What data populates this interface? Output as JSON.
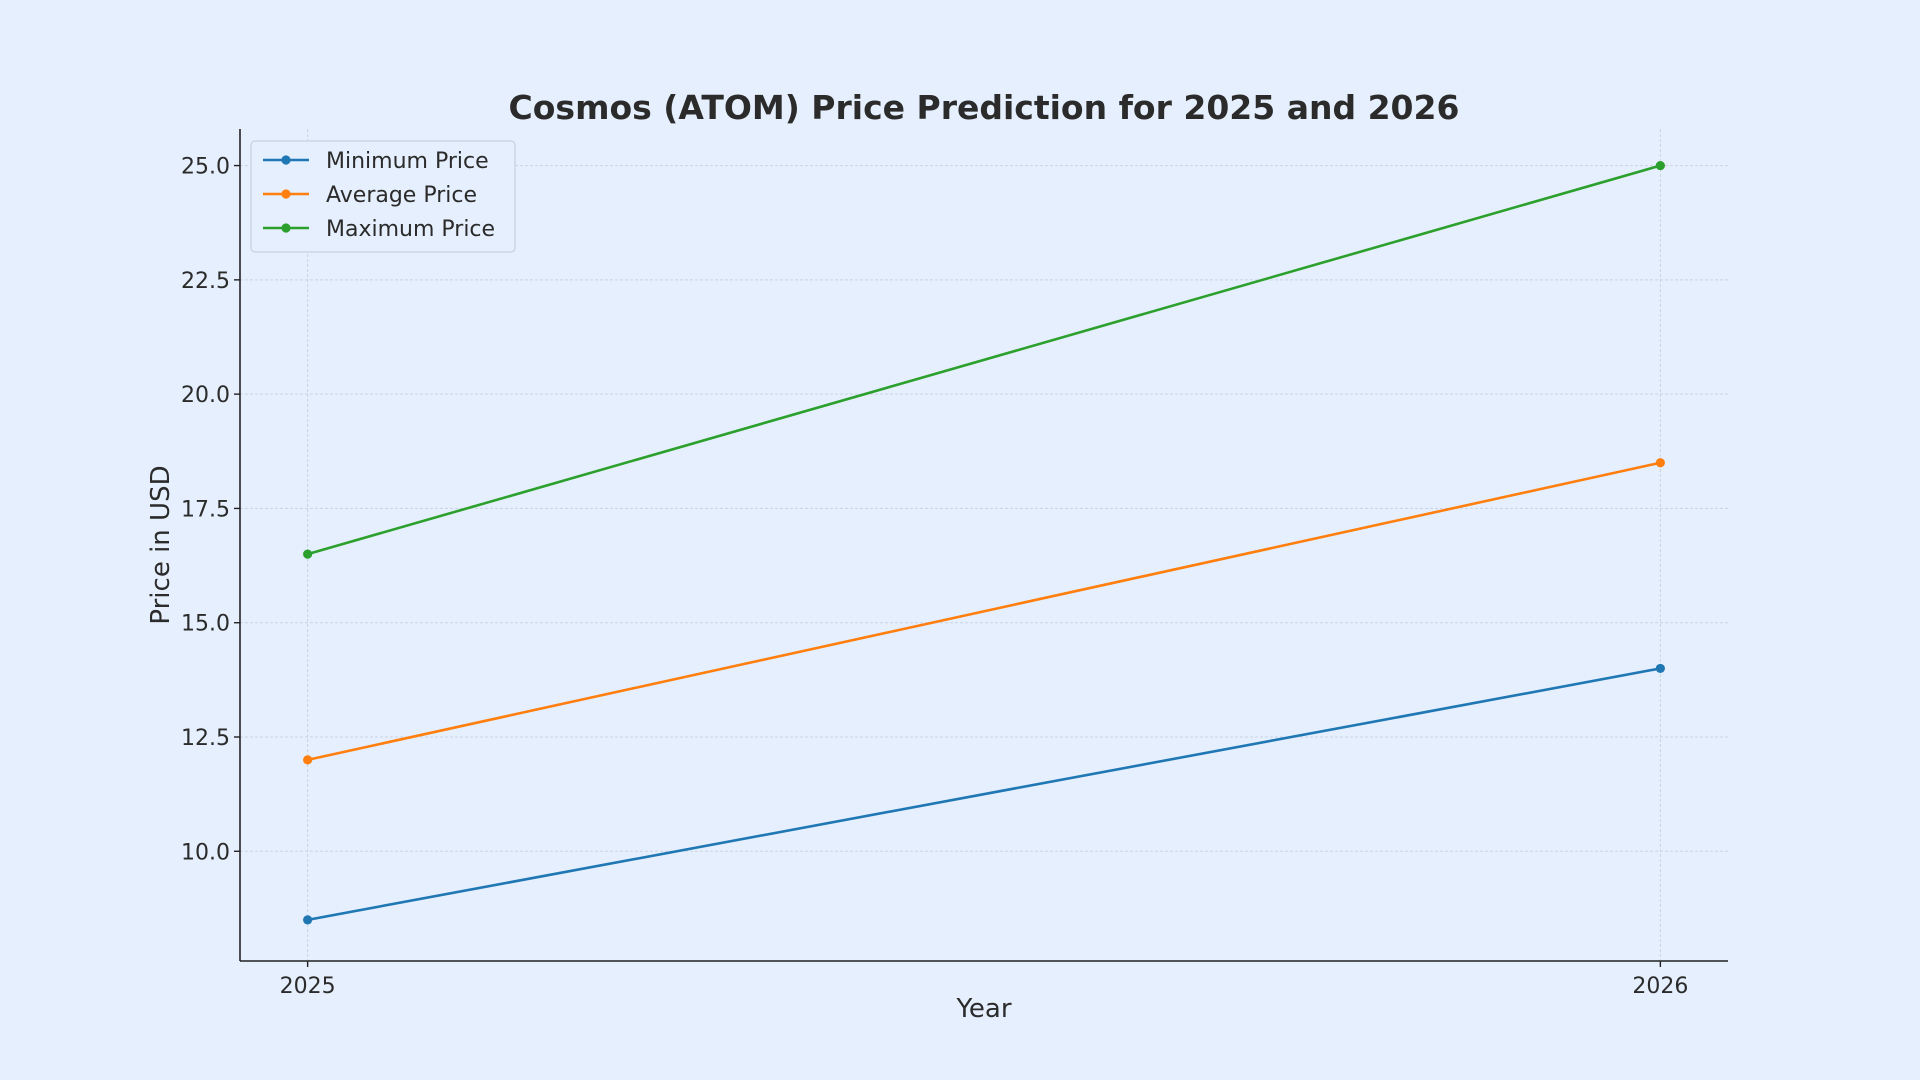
{
  "chart_data": {
    "type": "line",
    "title": "Cosmos (ATOM) Price Prediction for 2025 and 2026",
    "xlabel": "Year",
    "ylabel": "Price in USD",
    "x": [
      2025,
      2026
    ],
    "x_tick_labels": [
      "2025",
      "2026"
    ],
    "xlim": [
      2024.95,
      2026.05
    ],
    "ylim": [
      7.6,
      25.8
    ],
    "y_ticks": [
      10.0,
      12.5,
      15.0,
      17.5,
      20.0,
      22.5,
      25.0
    ],
    "y_tick_labels": [
      "10.0",
      "12.5",
      "15.0",
      "17.5",
      "20.0",
      "22.5",
      "25.0"
    ],
    "grid": true,
    "legend_position": "top-left",
    "series": [
      {
        "name": "Minimum Price",
        "values": [
          8.5,
          14.0
        ],
        "color": "#1f77b4"
      },
      {
        "name": "Average Price",
        "values": [
          12.0,
          18.5
        ],
        "color": "#ff7f0e"
      },
      {
        "name": "Maximum Price",
        "values": [
          16.5,
          25.0
        ],
        "color": "#2ca02c"
      }
    ]
  }
}
